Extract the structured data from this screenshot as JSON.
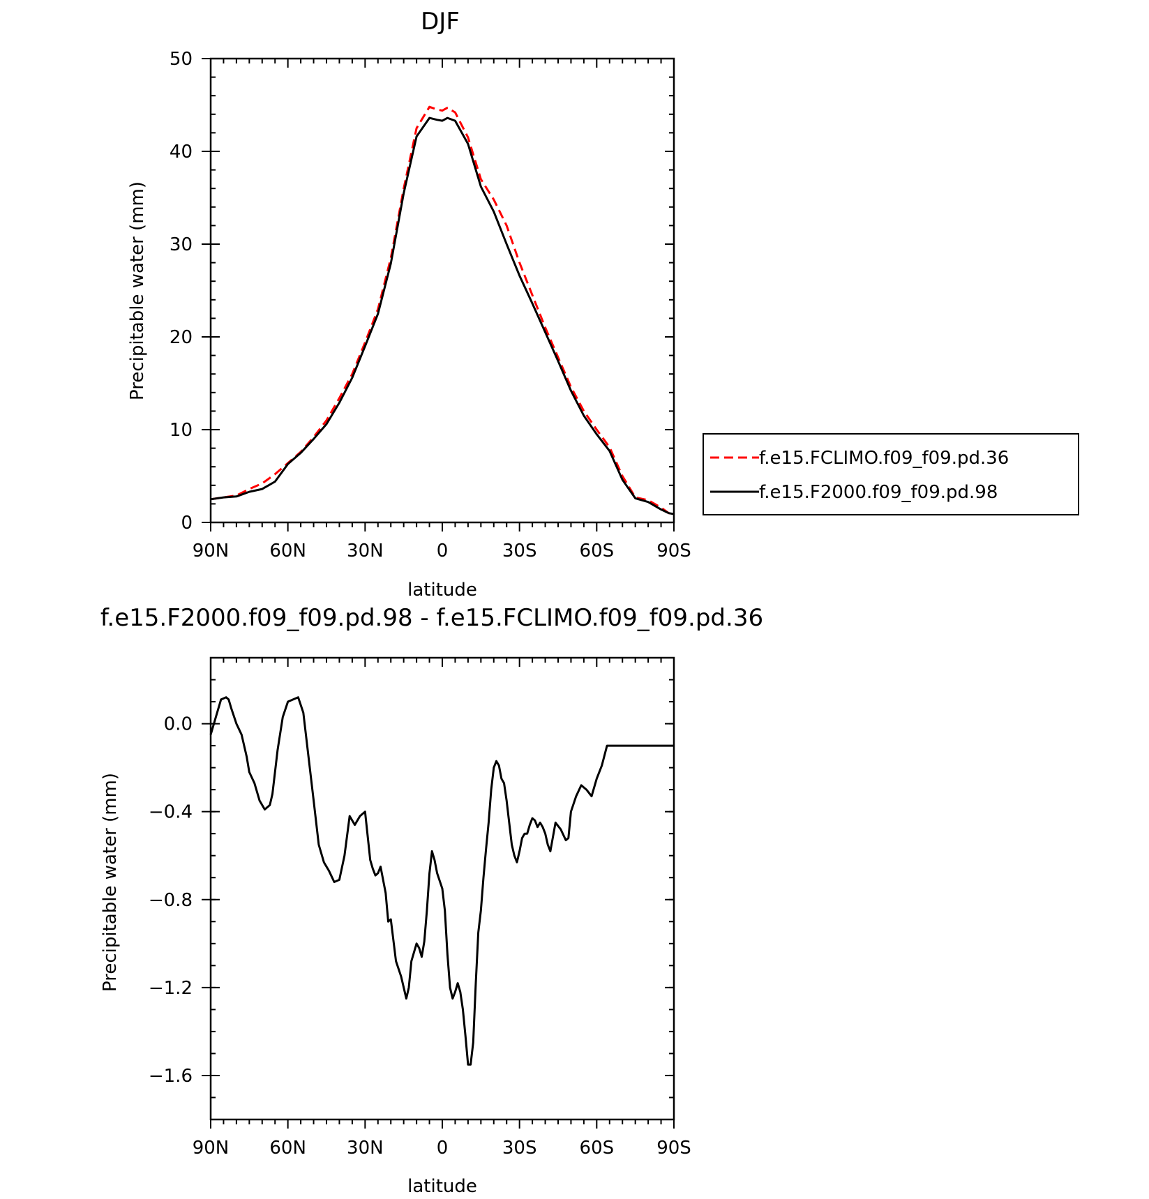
{
  "chart_data": [
    {
      "type": "line",
      "title": "DJF",
      "xlabel": "latitude",
      "ylabel": "Precipitable water (mm)",
      "xlim": [
        90,
        -90
      ],
      "ylim": [
        0,
        50
      ],
      "yticks": [
        0,
        10,
        20,
        30,
        40,
        50
      ],
      "xticks": [
        90,
        60,
        30,
        0,
        -30,
        -60,
        -90
      ],
      "xticklabels": [
        "90N",
        "60N",
        "30N",
        "0",
        "30S",
        "60S",
        "90S"
      ],
      "yticklabels": [
        "0",
        "10",
        "20",
        "30",
        "40",
        "50"
      ],
      "legend_position": "right",
      "series": [
        {
          "name": "f.e15.FCLIMO.f09_f09.pd.36",
          "color": "#ff0000",
          "dash": "dashed",
          "x": [
            90,
            85,
            80,
            75,
            70,
            65,
            60,
            55,
            50,
            45,
            40,
            35,
            30,
            25,
            20,
            15,
            10,
            5,
            2,
            0,
            -2,
            -5,
            -10,
            -15,
            -20,
            -25,
            -30,
            -35,
            -40,
            -45,
            -50,
            -55,
            -60,
            -65,
            -70,
            -75,
            -80,
            -85,
            -88,
            -90
          ],
          "values": [
            2.5,
            2.7,
            2.9,
            3.6,
            4.2,
            5.2,
            6.4,
            7.6,
            9.2,
            11.0,
            13.4,
            16.0,
            19.4,
            23.0,
            28.5,
            36.0,
            42.5,
            44.8,
            44.5,
            44.4,
            44.7,
            44.2,
            41.5,
            37.0,
            34.8,
            32.0,
            28.0,
            24.5,
            21.0,
            17.8,
            14.6,
            12.0,
            10.0,
            8.1,
            5.0,
            2.7,
            2.4,
            1.6,
            1.0,
            0.9
          ]
        },
        {
          "name": "f.e15.F2000.f09_f09.pd.98",
          "color": "#000000",
          "dash": "solid",
          "x": [
            90,
            85,
            80,
            75,
            70,
            65,
            60,
            55,
            50,
            45,
            40,
            35,
            30,
            25,
            20,
            15,
            10,
            5,
            2,
            0,
            -2,
            -5,
            -10,
            -15,
            -20,
            -25,
            -30,
            -35,
            -40,
            -45,
            -50,
            -55,
            -60,
            -65,
            -70,
            -75,
            -80,
            -85,
            -88,
            -90
          ],
          "values": [
            2.5,
            2.7,
            2.8,
            3.3,
            3.6,
            4.4,
            6.3,
            7.5,
            9.0,
            10.6,
            12.9,
            15.6,
            19.0,
            22.5,
            27.9,
            35.5,
            41.6,
            43.6,
            43.4,
            43.3,
            43.6,
            43.3,
            40.8,
            36.2,
            33.5,
            30.0,
            26.6,
            23.6,
            20.5,
            17.4,
            14.2,
            11.5,
            9.5,
            7.7,
            4.6,
            2.6,
            2.2,
            1.4,
            1.0,
            0.9
          ]
        }
      ]
    },
    {
      "type": "line",
      "title": "f.e15.F2000.f09_f09.pd.98 - f.e15.FCLIMO.f09_f09.pd.36",
      "xlabel": "latitude",
      "ylabel": "Precipitable water (mm)",
      "xlim": [
        90,
        -90
      ],
      "ylim": [
        -1.8,
        0.3
      ],
      "yticks": [
        0.0,
        -0.4,
        -0.8,
        -1.2,
        -1.6
      ],
      "yticklabels": [
        "0.0",
        "−0.4",
        "−0.8",
        "−1.2",
        "−1.6"
      ],
      "xticks": [
        90,
        60,
        30,
        0,
        -30,
        -60,
        -90
      ],
      "xticklabels": [
        "90N",
        "60N",
        "30N",
        "0",
        "30S",
        "60S",
        "90S"
      ],
      "series": [
        {
          "color": "#000000",
          "dash": "solid",
          "x": [
            90,
            88,
            86,
            84,
            83,
            82,
            80,
            78,
            76,
            75,
            73,
            71,
            69,
            67,
            66,
            64,
            62,
            60,
            58,
            56,
            54,
            52,
            50,
            48,
            46,
            44,
            42,
            40,
            38,
            36,
            34,
            32,
            30,
            28,
            27,
            26,
            25,
            24,
            22,
            21,
            20,
            18,
            16,
            14,
            13,
            12,
            10,
            9,
            8,
            7,
            6,
            5,
            4,
            3,
            2,
            0,
            -1,
            -2,
            -3,
            -4,
            -5,
            -6,
            -7,
            -8,
            -9,
            -10,
            -11,
            -12,
            -13,
            -14,
            -15,
            -16,
            -17,
            -18,
            -19,
            -20,
            -21,
            -22,
            -23,
            -24,
            -25,
            -26,
            -27,
            -28,
            -29,
            -30,
            -31,
            -32,
            -33,
            -34,
            -35,
            -36,
            -37,
            -38,
            -39,
            -40,
            -41,
            -42,
            -44,
            -46,
            -48,
            -49,
            -50,
            -52,
            -54,
            -55,
            -56,
            -58,
            -60,
            -62,
            -64,
            -65,
            -66,
            -67,
            -68,
            -70,
            -71,
            -72,
            -74,
            -75,
            -76,
            -78,
            -80,
            -82,
            -84,
            -86,
            -87,
            -88,
            -90
          ],
          "values": [
            -0.05,
            0.03,
            0.11,
            0.12,
            0.11,
            0.07,
            0.0,
            -0.05,
            -0.15,
            -0.22,
            -0.27,
            -0.35,
            -0.39,
            -0.37,
            -0.32,
            -0.12,
            0.03,
            0.1,
            0.11,
            0.12,
            0.05,
            -0.15,
            -0.35,
            -0.55,
            -0.63,
            -0.67,
            -0.72,
            -0.71,
            -0.6,
            -0.42,
            -0.46,
            -0.42,
            -0.4,
            -0.62,
            -0.66,
            -0.69,
            -0.68,
            -0.65,
            -0.77,
            -0.9,
            -0.89,
            -1.08,
            -1.15,
            -1.25,
            -1.2,
            -1.08,
            -1.0,
            -1.02,
            -1.06,
            -0.99,
            -0.85,
            -0.68,
            -0.58,
            -0.62,
            -0.68,
            -0.75,
            -0.85,
            -1.05,
            -1.2,
            -1.25,
            -1.22,
            -1.18,
            -1.22,
            -1.3,
            -1.42,
            -1.55,
            -1.55,
            -1.45,
            -1.18,
            -0.95,
            -0.85,
            -0.7,
            -0.57,
            -0.45,
            -0.3,
            -0.2,
            -0.17,
            -0.19,
            -0.25,
            -0.27,
            -0.35,
            -0.45,
            -0.55,
            -0.6,
            -0.63,
            -0.58,
            -0.52,
            -0.5,
            -0.5,
            -0.46,
            -0.43,
            -0.44,
            -0.47,
            -0.45,
            -0.47,
            -0.5,
            -0.55,
            -0.58,
            -0.45,
            -0.48,
            -0.53,
            -0.52,
            -0.4,
            -0.33,
            -0.28,
            -0.29,
            -0.3,
            -0.33,
            -0.25,
            -0.19,
            -0.1,
            -0.1,
            -0.1,
            -0.1,
            -0.1,
            -0.1,
            -0.1,
            -0.1,
            -0.1,
            -0.1,
            -0.1,
            -0.1,
            -0.1,
            -0.1,
            -0.1,
            -0.1,
            -0.1,
            -0.1,
            -0.1
          ]
        }
      ]
    }
  ]
}
